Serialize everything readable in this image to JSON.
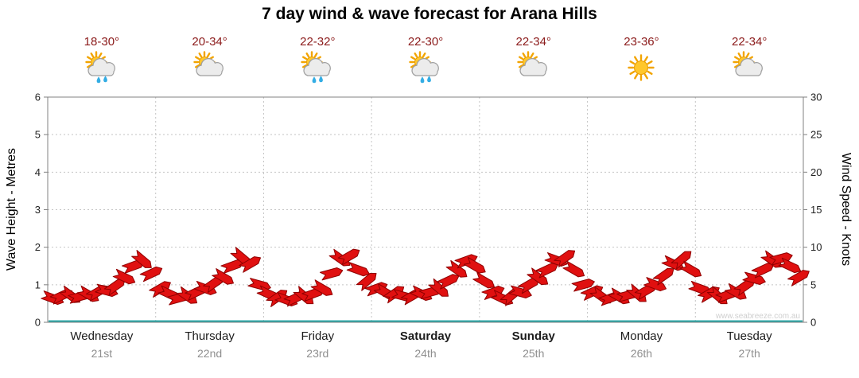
{
  "title": "7 day wind & wave forecast for Arana Hills",
  "watermark": "www.seabreeze.com.au",
  "colors": {
    "temperature": "#8b1a1a",
    "wind_barb": "#e01010",
    "wind_barb_outline": "#8f0000",
    "wave_line": "#2aa7a7",
    "grid": "#c4c4c4",
    "axis_border": "#808080",
    "tick_text": "#222222"
  },
  "forecast": {
    "days": [
      {
        "name": "Wednesday",
        "date": "21st",
        "temp": "18-30°",
        "icon": "sun-cloud-rain",
        "weekend": false
      },
      {
        "name": "Thursday",
        "date": "22nd",
        "temp": "20-34°",
        "icon": "sun-cloud",
        "weekend": false
      },
      {
        "name": "Friday",
        "date": "23rd",
        "temp": "22-32°",
        "icon": "sun-cloud-rain",
        "weekend": false
      },
      {
        "name": "Saturday",
        "date": "24th",
        "temp": "22-30°",
        "icon": "sun-cloud-rain",
        "weekend": true
      },
      {
        "name": "Sunday",
        "date": "25th",
        "temp": "22-34°",
        "icon": "sun-cloud",
        "weekend": true
      },
      {
        "name": "Monday",
        "date": "26th",
        "temp": "23-36°",
        "icon": "sun",
        "weekend": false
      },
      {
        "name": "Tuesday",
        "date": "27th",
        "temp": "22-34°",
        "icon": "sun-cloud",
        "weekend": false
      }
    ]
  },
  "chart_data": {
    "type": "line",
    "title": "7 day wind & wave forecast for Arana Hills",
    "categories": [
      "Wednesday",
      "Thursday",
      "Friday",
      "Saturday",
      "Sunday",
      "Monday",
      "Tuesday"
    ],
    "samples_per_day": 12,
    "grid": true,
    "y_left": {
      "label": "Wave Height - Metres",
      "min": 0,
      "max": 6,
      "ticks": [
        0,
        1,
        2,
        3,
        4,
        5,
        6
      ]
    },
    "y_right": {
      "label": "Wind Speed - Knots",
      "min": 0,
      "max": 30,
      "ticks": [
        0,
        5,
        10,
        15,
        20,
        25,
        30
      ]
    },
    "series": [
      {
        "name": "Wind Speed",
        "unit": "knots",
        "style": "wind-barbs",
        "color": "#e01010",
        "outline": "#8f0000",
        "values": [
          3.2,
          3.5,
          3.6,
          3.4,
          3.7,
          4.0,
          4.2,
          4.8,
          6.0,
          7.5,
          8.3,
          6.5,
          4.5,
          3.8,
          3.2,
          3.5,
          4.0,
          4.5,
          5.2,
          6.0,
          7.5,
          8.7,
          7.8,
          5.0,
          3.8,
          3.3,
          3.0,
          3.2,
          3.5,
          3.8,
          4.5,
          6.5,
          8.5,
          8.8,
          7.0,
          5.5,
          4.5,
          4.0,
          3.8,
          3.5,
          3.5,
          3.8,
          4.0,
          4.5,
          5.5,
          7.0,
          8.2,
          7.5,
          5.5,
          4.0,
          3.2,
          3.5,
          4.0,
          5.0,
          6.0,
          7.0,
          8.3,
          8.6,
          7.0,
          5.0,
          4.0,
          3.5,
          3.2,
          3.4,
          3.6,
          3.8,
          4.2,
          5.0,
          6.2,
          7.8,
          8.4,
          7.0,
          4.5,
          3.8,
          3.5,
          3.6,
          4.0,
          4.8,
          5.8,
          7.0,
          8.3,
          8.5,
          7.5,
          6.0
        ],
        "barb_angles": [
          20,
          -25,
          35,
          -15,
          30,
          -30,
          15,
          -35,
          25,
          -20,
          40,
          -25,
          -30,
          25,
          -15,
          35,
          -25,
          20,
          -35,
          30,
          -20,
          40,
          -30,
          15,
          25,
          -35,
          20,
          -25,
          40,
          -20,
          30,
          -15,
          35,
          -30,
          20,
          -40,
          -20,
          30,
          -35,
          15,
          -30,
          25,
          -15,
          40,
          -25,
          35,
          -20,
          30,
          30,
          -20,
          25,
          -40,
          15,
          -30,
          35,
          -25,
          20,
          -35,
          30,
          -15,
          -25,
          35,
          -20,
          30,
          -15,
          40,
          -30,
          20,
          -35,
          25,
          -40,
          30,
          20,
          -30,
          40,
          -20,
          30,
          -35,
          15,
          -25,
          35,
          -15,
          25,
          -30
        ]
      },
      {
        "name": "Wave Height",
        "unit": "metres",
        "style": "line",
        "color": "#2aa7a7",
        "constant_value": 0
      }
    ]
  }
}
